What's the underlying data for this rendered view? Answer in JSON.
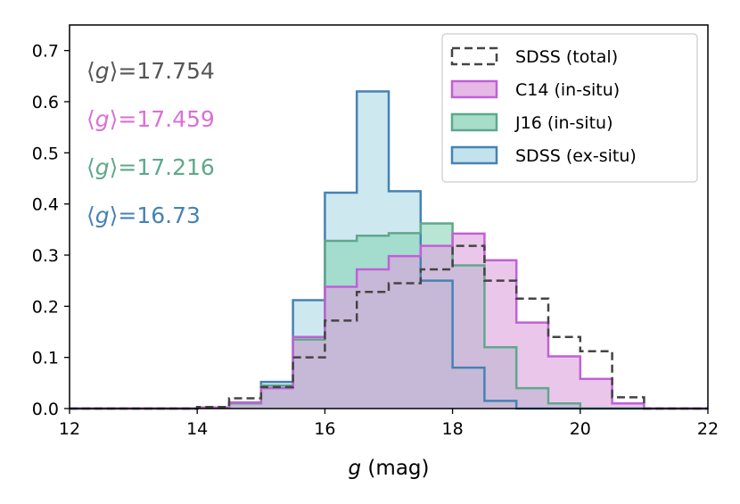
{
  "chart_data": {
    "type": "histogram",
    "xlabel_var": "g",
    "xlabel_unit": " (mag)",
    "ylabel": "",
    "xlim": [
      12,
      22
    ],
    "ylim": [
      0,
      0.75
    ],
    "xticks": [
      12,
      14,
      16,
      18,
      20,
      22
    ],
    "yticks": [
      0.0,
      0.1,
      0.2,
      0.3,
      0.4,
      0.5,
      0.6,
      0.7
    ],
    "grid": false,
    "legend_position": "top-right",
    "bin_edges": [
      12.0,
      12.5,
      13.0,
      13.5,
      14.0,
      14.5,
      15.0,
      15.5,
      16.0,
      16.5,
      17.0,
      17.5,
      18.0,
      18.5,
      19.0,
      19.5,
      20.0,
      20.5,
      21.0,
      21.5,
      22.0
    ],
    "series": [
      {
        "key": "sdss_exsitu",
        "name": "SDSS (ex-situ)",
        "style": "filled",
        "fill": "#add8e6",
        "stroke": "#4682b4",
        "values": [
          0,
          0,
          0,
          0,
          0.002,
          0.01,
          0.052,
          0.212,
          0.422,
          0.62,
          0.425,
          0.25,
          0.08,
          0.015,
          0,
          0,
          0,
          0,
          0,
          0
        ]
      },
      {
        "key": "j16_insitu",
        "name": "J16 (in-situ)",
        "style": "filled",
        "fill": "#88d3b8",
        "stroke": "#5fa88c",
        "values": [
          0,
          0,
          0,
          0,
          0.002,
          0.01,
          0.045,
          0.135,
          0.328,
          0.338,
          0.343,
          0.362,
          0.28,
          0.12,
          0.04,
          0.01,
          0,
          0,
          0,
          0
        ]
      },
      {
        "key": "c14_insitu",
        "name": "C14 (in-situ)",
        "style": "filled",
        "fill": "#dda0dd",
        "stroke": "#c060d8",
        "values": [
          0,
          0,
          0,
          0,
          0.002,
          0.012,
          0.04,
          0.14,
          0.238,
          0.272,
          0.298,
          0.318,
          0.342,
          0.29,
          0.168,
          0.102,
          0.058,
          0.01,
          0,
          0
        ]
      },
      {
        "key": "sdss_total",
        "name": "SDSS (total)",
        "style": "dashed",
        "stroke": "#444444",
        "values": [
          0,
          0,
          0,
          0,
          0.003,
          0.02,
          0.042,
          0.1,
          0.172,
          0.228,
          0.245,
          0.272,
          0.318,
          0.25,
          0.215,
          0.14,
          0.112,
          0.022,
          0,
          0
        ]
      }
    ],
    "legend_order": [
      "sdss_total",
      "c14_insitu",
      "j16_insitu",
      "sdss_exsitu"
    ],
    "annotations": [
      {
        "name": "mean-annotation-total",
        "prefix": "⟨",
        "var": "g",
        "suffix": "⟩=17.754",
        "color": "#555555"
      },
      {
        "name": "mean-annotation-c14",
        "prefix": "⟨",
        "var": "g",
        "suffix": "⟩=17.459",
        "color": "#da70d6"
      },
      {
        "name": "mean-annotation-j16",
        "prefix": "⟨",
        "var": "g",
        "suffix": "⟩=17.216",
        "color": "#5fa88c"
      },
      {
        "name": "mean-annotation-exsitu",
        "prefix": "⟨",
        "var": "g",
        "suffix": "⟩=16.73",
        "color": "#4682b4"
      }
    ]
  }
}
